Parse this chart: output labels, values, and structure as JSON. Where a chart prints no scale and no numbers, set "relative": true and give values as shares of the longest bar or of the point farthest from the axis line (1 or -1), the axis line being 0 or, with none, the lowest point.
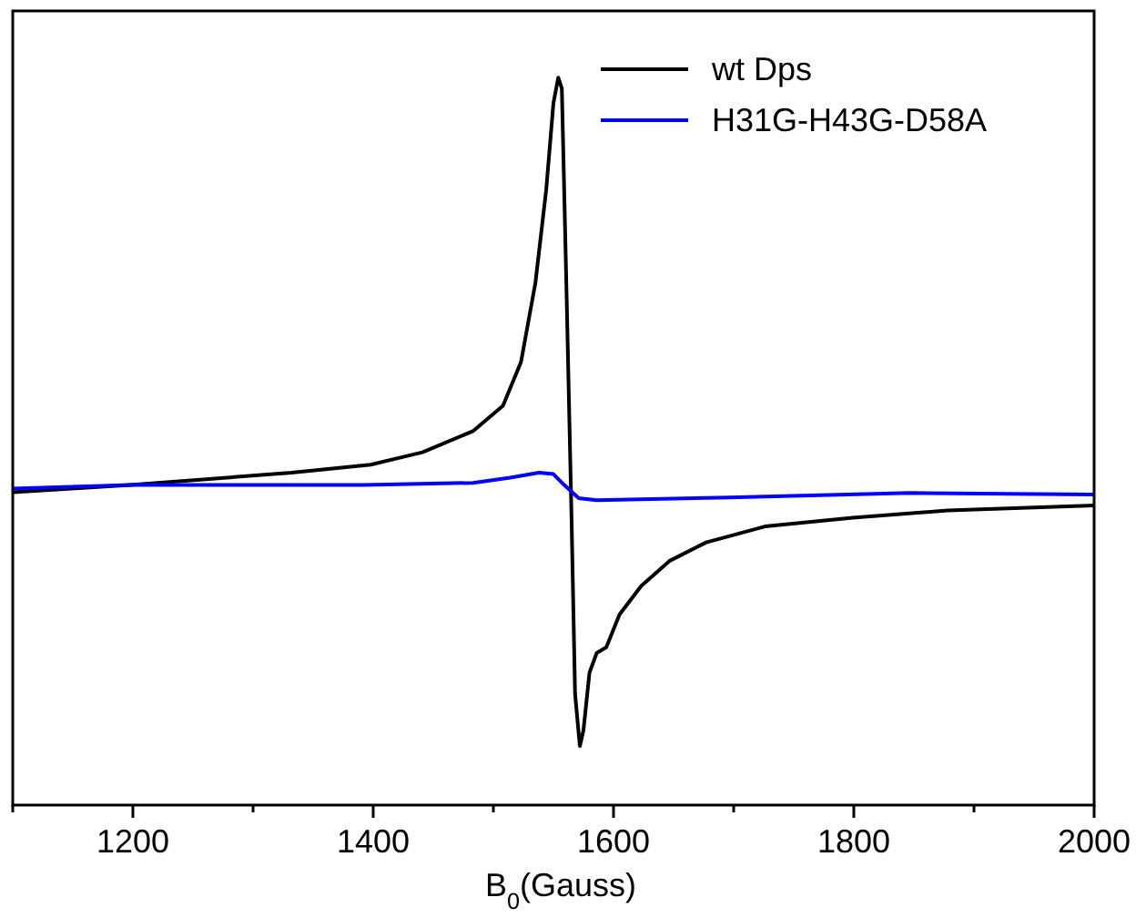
{
  "chart_data": {
    "type": "line",
    "relative": true,
    "xlabel": "B$_{0}$(Gauss)",
    "xlim": [
      1100,
      2000
    ],
    "xticks": [
      {
        "value": 1100,
        "label": null
      },
      1200,
      {
        "value": 1300,
        "label": null
      },
      1400,
      {
        "value": 1500,
        "label": null
      },
      1600,
      {
        "value": 1700,
        "label": null
      },
      1800,
      {
        "value": 1900,
        "label": null
      },
      2000
    ],
    "legend": "top right",
    "grid": false,
    "line_style": "solid",
    "series": [
      {
        "name": "wt Dps",
        "color": "#000000",
        "x": [
          1100,
          1198,
          1332,
          1398,
          1441,
          1483,
          1508,
          1523,
          1535,
          1544,
          1550,
          1554,
          1557,
          1561,
          1565,
          1568,
          1572,
          1575,
          1580,
          1586,
          1594,
          1605,
          1623,
          1647,
          1677,
          1726,
          1799,
          1878,
          2000
        ],
        "values": [
          0.43,
          0.44,
          0.457,
          0.468,
          0.485,
          0.514,
          0.549,
          0.609,
          0.718,
          0.846,
          0.965,
          1,
          0.985,
          0.698,
          0.4,
          0.153,
          0.081,
          0.103,
          0.182,
          0.209,
          0.217,
          0.262,
          0.301,
          0.336,
          0.361,
          0.383,
          0.395,
          0.405,
          0.412
        ]
      },
      {
        "name": "H31G-H43G-D58A",
        "color": "#0000ff",
        "x": [
          1100,
          1198,
          1392,
          1483,
          1514,
          1538,
          1550,
          1559,
          1571,
          1586,
          1696,
          1847,
          2000
        ],
        "values": [
          0.435,
          0.44,
          0.44,
          0.443,
          0.45,
          0.457,
          0.455,
          0.44,
          0.422,
          0.419,
          0.423,
          0.429,
          0.427
        ]
      }
    ]
  }
}
